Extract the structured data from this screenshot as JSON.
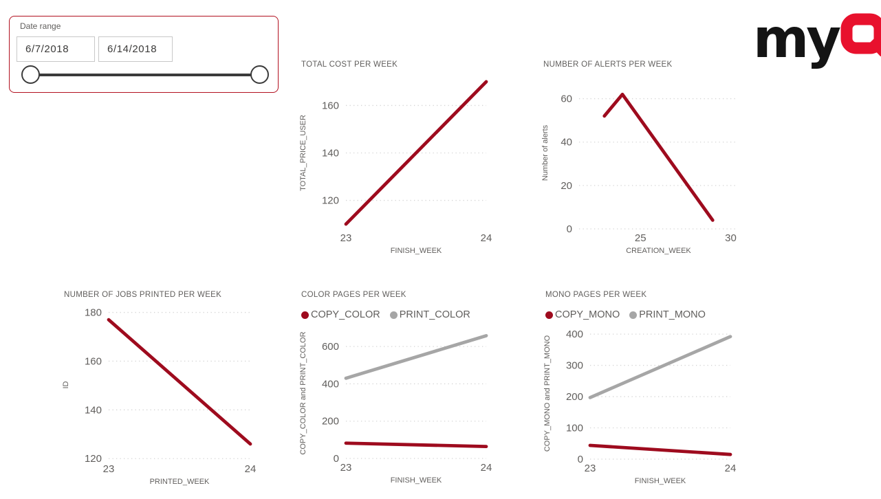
{
  "page": {
    "background": "#ffffff"
  },
  "colors": {
    "line_red": "#9e0b1e",
    "line_gray": "#a6a6a6",
    "text_gray": "#605e5c",
    "gridline": "#d4d4d4",
    "slicer_border": "#b2101f",
    "logo_red": "#e8112d",
    "logo_black": "#141414"
  },
  "slicer": {
    "label": "Date range",
    "start_date": "6/7/2018",
    "end_date": "6/14/2018"
  },
  "logo": {
    "text_black": "my",
    "text_red": "Q"
  },
  "chart_data": [
    {
      "type": "line",
      "title": "TOTAL COST PER WEEK",
      "xlabel": "FINISH_WEEK",
      "ylabel": "TOTAL_PRICE_USER",
      "xlim": [
        23,
        24
      ],
      "ylim": [
        108,
        172
      ],
      "xticks": [
        23,
        24
      ],
      "yticks": [
        120,
        140,
        160
      ],
      "grid": "horizontal-dotted",
      "legend": false,
      "legend_position": "none",
      "series": [
        {
          "name": "TOTAL_PRICE_USER",
          "color": "#9e0b1e",
          "points": [
            [
              23,
              110
            ],
            [
              24,
              170
            ]
          ]
        }
      ]
    },
    {
      "type": "line",
      "title": "NUMBER OF ALERTS PER WEEK",
      "xlabel": "CREATION_WEEK",
      "ylabel": "Number of alerts",
      "xlim": [
        21.6,
        30.4
      ],
      "ylim": [
        0,
        70
      ],
      "xticks": [
        25,
        30
      ],
      "yticks": [
        0,
        20,
        40,
        60
      ],
      "grid": "horizontal-dotted",
      "legend": false,
      "legend_position": "none",
      "series": [
        {
          "name": "Number of alerts",
          "color": "#9e0b1e",
          "points": [
            [
              23,
              52
            ],
            [
              24,
              62
            ],
            [
              29,
              4
            ]
          ]
        }
      ]
    },
    {
      "type": "line",
      "title": "NUMBER OF JOBS PRINTED PER WEEK",
      "xlabel": "PRINTED_WEEK",
      "ylabel": "ID",
      "xlim": [
        23,
        24
      ],
      "ylim": [
        119.5,
        181
      ],
      "xticks": [
        23,
        24
      ],
      "yticks": [
        120,
        140,
        160,
        180
      ],
      "grid": "horizontal-dotted",
      "legend": false,
      "legend_position": "none",
      "series": [
        {
          "name": "ID",
          "color": "#9e0b1e",
          "points": [
            [
              23,
              177
            ],
            [
              24,
              126
            ]
          ]
        }
      ]
    },
    {
      "type": "line",
      "title": "COLOR PAGES PER WEEK",
      "xlabel": "FINISH_WEEK",
      "ylabel": "COPY_COLOR and PRINT_COLOR",
      "xlim": [
        23,
        24
      ],
      "ylim": [
        0,
        700
      ],
      "xticks": [
        23,
        24
      ],
      "yticks": [
        0,
        200,
        400,
        600
      ],
      "grid": "horizontal-dotted",
      "legend": true,
      "legend_position": "top",
      "series": [
        {
          "name": "COPY_COLOR",
          "color": "#9e0b1e",
          "points": [
            [
              23,
              82
            ],
            [
              24,
              64
            ]
          ]
        },
        {
          "name": "PRINT_COLOR",
          "color": "#a6a6a6",
          "points": [
            [
              23,
              430
            ],
            [
              24,
              658
            ]
          ]
        }
      ]
    },
    {
      "type": "line",
      "title": "MONO PAGES PER WEEK",
      "xlabel": "FINISH_WEEK",
      "ylabel": "COPY_MONO and PRINT_MONO",
      "xlim": [
        23,
        24
      ],
      "ylim": [
        0,
        420
      ],
      "xticks": [
        23,
        24
      ],
      "yticks": [
        0,
        100,
        200,
        300,
        400
      ],
      "grid": "horizontal-dotted",
      "legend": true,
      "legend_position": "top",
      "series": [
        {
          "name": "COPY_MONO",
          "color": "#9e0b1e",
          "points": [
            [
              23,
              44
            ],
            [
              24,
              15
            ]
          ]
        },
        {
          "name": "PRINT_MONO",
          "color": "#a6a6a6",
          "points": [
            [
              23,
              197
            ],
            [
              24,
              392
            ]
          ]
        }
      ]
    }
  ]
}
